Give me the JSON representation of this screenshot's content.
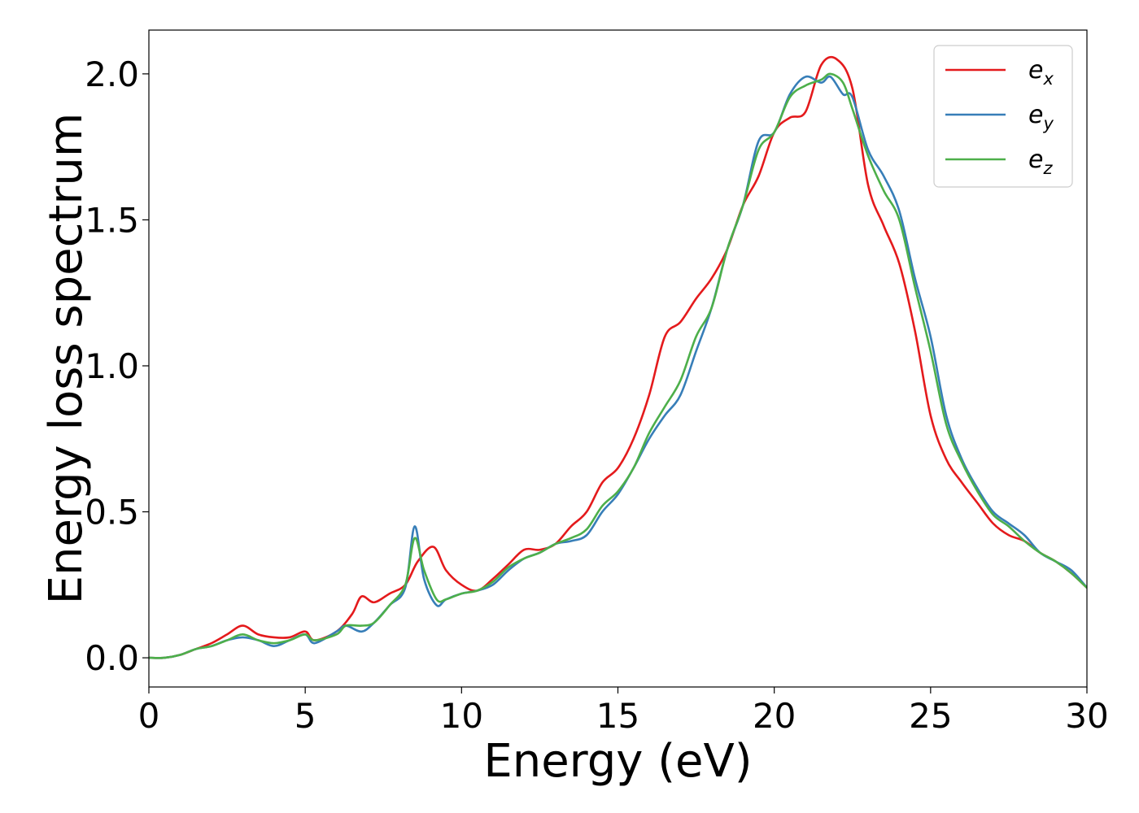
{
  "chart_data": {
    "type": "line",
    "title": "",
    "xlabel": "Energy (eV)",
    "ylabel": "Energy loss spectrum",
    "xlim": [
      0,
      30
    ],
    "ylim": [
      -0.1,
      2.15
    ],
    "xticks": [
      0,
      5,
      10,
      15,
      20,
      25,
      30
    ],
    "xtick_labels": [
      "0",
      "5",
      "10",
      "15",
      "20",
      "25",
      "30"
    ],
    "yticks": [
      0.0,
      0.5,
      1.0,
      1.5,
      2.0
    ],
    "ytick_labels": [
      "0.0",
      "0.5",
      "1.0",
      "1.5",
      "2.0"
    ],
    "grid": false,
    "legend_position": "top-right",
    "series": [
      {
        "name": "e",
        "subscript": "x",
        "color": "#e41a1c",
        "x": [
          0,
          0.5,
          1.0,
          1.5,
          2.0,
          2.5,
          3.0,
          3.5,
          4.0,
          4.5,
          5.0,
          5.3,
          6.0,
          6.5,
          6.8,
          7.2,
          7.7,
          8.2,
          8.6,
          9.1,
          9.5,
          10.0,
          10.5,
          11.0,
          11.5,
          12.0,
          12.5,
          13.0,
          13.5,
          14.0,
          14.5,
          15.0,
          15.5,
          16.0,
          16.5,
          17.0,
          17.5,
          18.0,
          18.5,
          19.0,
          19.5,
          20.0,
          20.5,
          21.0,
          21.5,
          22.0,
          22.5,
          23.0,
          23.5,
          24.0,
          24.5,
          25.0,
          25.5,
          26.0,
          26.5,
          27.0,
          27.5,
          28.0,
          28.5,
          29.0,
          29.5,
          30.0
        ],
        "y": [
          0.0,
          0.0,
          0.01,
          0.03,
          0.05,
          0.08,
          0.11,
          0.08,
          0.07,
          0.07,
          0.09,
          0.06,
          0.09,
          0.15,
          0.21,
          0.19,
          0.22,
          0.25,
          0.33,
          0.38,
          0.3,
          0.25,
          0.23,
          0.27,
          0.32,
          0.37,
          0.37,
          0.39,
          0.45,
          0.5,
          0.6,
          0.65,
          0.75,
          0.9,
          1.1,
          1.15,
          1.23,
          1.3,
          1.4,
          1.55,
          1.65,
          1.8,
          1.85,
          1.87,
          2.03,
          2.05,
          1.95,
          1.62,
          1.48,
          1.35,
          1.12,
          0.83,
          0.68,
          0.6,
          0.53,
          0.46,
          0.42,
          0.4,
          0.36,
          0.33,
          0.29,
          0.24
        ]
      },
      {
        "name": "e",
        "subscript": "y",
        "color": "#377eb8",
        "x": [
          0,
          0.5,
          1.0,
          1.5,
          2.0,
          2.5,
          3.0,
          3.5,
          4.0,
          4.5,
          5.0,
          5.3,
          6.0,
          6.3,
          6.8,
          7.2,
          7.7,
          8.2,
          8.5,
          8.8,
          9.2,
          9.5,
          10.0,
          10.5,
          11.0,
          11.5,
          12.0,
          12.5,
          13.0,
          13.5,
          14.0,
          14.5,
          15.0,
          15.5,
          16.0,
          16.5,
          17.0,
          17.5,
          18.0,
          18.5,
          19.0,
          19.5,
          20.0,
          20.5,
          21.0,
          21.5,
          21.8,
          22.2,
          22.5,
          23.0,
          23.5,
          24.0,
          24.5,
          25.0,
          25.5,
          26.0,
          26.5,
          27.0,
          27.5,
          28.0,
          28.5,
          29.0,
          29.5,
          30.0
        ],
        "y": [
          0.0,
          0.0,
          0.01,
          0.03,
          0.04,
          0.06,
          0.07,
          0.06,
          0.04,
          0.06,
          0.08,
          0.05,
          0.09,
          0.11,
          0.09,
          0.12,
          0.18,
          0.24,
          0.45,
          0.27,
          0.18,
          0.2,
          0.22,
          0.23,
          0.25,
          0.3,
          0.34,
          0.36,
          0.39,
          0.4,
          0.42,
          0.5,
          0.56,
          0.65,
          0.75,
          0.83,
          0.9,
          1.05,
          1.2,
          1.4,
          1.55,
          1.77,
          1.8,
          1.93,
          1.99,
          1.97,
          1.99,
          1.93,
          1.92,
          1.74,
          1.65,
          1.53,
          1.3,
          1.1,
          0.83,
          0.68,
          0.58,
          0.5,
          0.46,
          0.42,
          0.36,
          0.33,
          0.3,
          0.24
        ]
      },
      {
        "name": "e",
        "subscript": "z",
        "color": "#4daf4a",
        "x": [
          0,
          0.5,
          1.0,
          1.5,
          2.0,
          2.5,
          3.0,
          3.5,
          4.0,
          4.5,
          5.0,
          5.3,
          6.0,
          6.3,
          6.8,
          7.2,
          7.7,
          8.2,
          8.5,
          8.8,
          9.2,
          9.5,
          10.0,
          10.5,
          11.0,
          11.5,
          12.0,
          12.5,
          13.0,
          13.5,
          14.0,
          14.5,
          15.0,
          15.5,
          16.0,
          16.5,
          17.0,
          17.5,
          18.0,
          18.5,
          19.0,
          19.5,
          20.0,
          20.5,
          21.0,
          21.5,
          21.8,
          22.2,
          22.5,
          23.0,
          23.5,
          24.0,
          24.5,
          25.0,
          25.5,
          26.0,
          26.5,
          27.0,
          27.5,
          28.0,
          28.5,
          29.0,
          29.5,
          30.0
        ],
        "y": [
          0.0,
          0.0,
          0.01,
          0.03,
          0.04,
          0.06,
          0.08,
          0.06,
          0.05,
          0.06,
          0.08,
          0.06,
          0.08,
          0.11,
          0.11,
          0.12,
          0.18,
          0.25,
          0.41,
          0.3,
          0.2,
          0.2,
          0.22,
          0.23,
          0.26,
          0.31,
          0.34,
          0.36,
          0.39,
          0.41,
          0.44,
          0.52,
          0.57,
          0.65,
          0.77,
          0.86,
          0.95,
          1.1,
          1.2,
          1.4,
          1.55,
          1.74,
          1.8,
          1.92,
          1.96,
          1.98,
          2.0,
          1.97,
          1.88,
          1.72,
          1.6,
          1.5,
          1.27,
          1.05,
          0.8,
          0.67,
          0.57,
          0.49,
          0.45,
          0.4,
          0.36,
          0.33,
          0.29,
          0.24
        ]
      }
    ]
  }
}
